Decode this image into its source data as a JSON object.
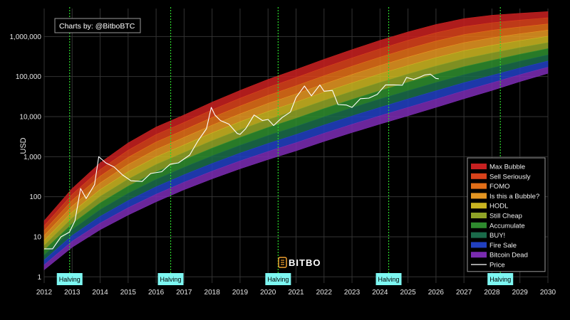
{
  "credit": "Charts by: @BitboBTC",
  "watermark": "BITBO",
  "chart_data": {
    "type": "area",
    "title": "",
    "xlabel": "",
    "ylabel": "USD",
    "yscale": "log",
    "xlim": [
      2012.0,
      2030.0
    ],
    "ylim": [
      0.7,
      5000000
    ],
    "x_ticks": [
      "2012",
      "2013",
      "2014",
      "2015",
      "2016",
      "2017",
      "2018",
      "2019",
      "2020",
      "2021",
      "2022",
      "2023",
      "2024",
      "2025",
      "2026",
      "2027",
      "2028",
      "2029",
      "2030"
    ],
    "y_ticks": [
      {
        "value": 1,
        "label": "1"
      },
      {
        "value": 10,
        "label": "10"
      },
      {
        "value": 100,
        "label": "100"
      },
      {
        "value": 1000,
        "label": "1,000"
      },
      {
        "value": 10000,
        "label": "10,000"
      },
      {
        "value": 100000,
        "label": "100,000"
      },
      {
        "value": 1000000,
        "label": "1,000,000"
      }
    ],
    "grid": true,
    "legend_position": "bottom-right",
    "bands": {
      "x": [
        2012.0,
        2013.0,
        2014.0,
        2015.0,
        2016.0,
        2017.0,
        2018.0,
        2019.0,
        2020.0,
        2021.0,
        2022.0,
        2023.0,
        2024.0,
        2025.0,
        2026.0,
        2027.0,
        2028.0,
        2029.0,
        2030.0
      ],
      "lower_edge": [
        1.5,
        5.5,
        15,
        35,
        75,
        150,
        280,
        500,
        850,
        1400,
        2400,
        4000,
        6500,
        10500,
        17000,
        28000,
        45000,
        75000,
        120000
      ],
      "upper_edge": [
        25,
        160,
        700,
        2200,
        5500,
        11000,
        23000,
        45000,
        85000,
        150000,
        270000,
        470000,
        800000,
        1300000,
        2000000,
        2800000,
        3400000,
        3800000,
        4200000
      ],
      "series": [
        {
          "name": "Max Bubble",
          "color": "#c62020"
        },
        {
          "name": "Sell Seriously",
          "color": "#d8421b"
        },
        {
          "name": "FOMO",
          "color": "#e06e18"
        },
        {
          "name": "Is this a Bubble?",
          "color": "#e39522"
        },
        {
          "name": "HODL",
          "color": "#c9b421"
        },
        {
          "name": "Still Cheap",
          "color": "#8fa327"
        },
        {
          "name": "Accumulate",
          "color": "#2e8b2e"
        },
        {
          "name": "BUY!",
          "color": "#1a6b4a"
        },
        {
          "name": "Fire Sale",
          "color": "#2140c0"
        },
        {
          "name": "Bitcoin Dead",
          "color": "#7a2bb0"
        }
      ]
    },
    "price": {
      "name": "Price",
      "color": "#ffffff",
      "x": [
        2012.0,
        2012.3,
        2012.6,
        2012.9,
        2013.1,
        2013.3,
        2013.5,
        2013.8,
        2013.95,
        2014.2,
        2014.5,
        2014.8,
        2015.1,
        2015.5,
        2015.8,
        2016.2,
        2016.5,
        2016.8,
        2017.2,
        2017.5,
        2017.8,
        2017.97,
        2018.1,
        2018.3,
        2018.6,
        2018.9,
        2019.0,
        2019.2,
        2019.5,
        2019.8,
        2020.0,
        2020.2,
        2020.5,
        2020.8,
        2021.0,
        2021.3,
        2021.55,
        2021.85,
        2022.0,
        2022.3,
        2022.5,
        2022.8,
        2023.0,
        2023.3,
        2023.6,
        2023.9,
        2024.2,
        2024.5,
        2024.8,
        2024.95,
        2025.2,
        2025.4,
        2025.6,
        2025.8,
        2026.0,
        2026.1
      ],
      "y": [
        5,
        5,
        10,
        13,
        25,
        160,
        90,
        200,
        1000,
        700,
        550,
        350,
        250,
        240,
        380,
        420,
        650,
        700,
        1100,
        2500,
        5000,
        17000,
        11000,
        8000,
        6500,
        3800,
        3600,
        5000,
        11000,
        8000,
        8500,
        6000,
        9500,
        13000,
        30000,
        58000,
        33000,
        62000,
        43000,
        45000,
        20000,
        19500,
        17000,
        28000,
        29000,
        36000,
        62000,
        62000,
        61000,
        95000,
        85000,
        95000,
        110000,
        115000,
        90000,
        88000
      ]
    },
    "halvings": [
      {
        "x": 2012.91,
        "label": "Halving"
      },
      {
        "x": 2016.52,
        "label": "Halving"
      },
      {
        "x": 2020.36,
        "label": "Halving"
      },
      {
        "x": 2024.31,
        "label": "Halving"
      },
      {
        "x": 2028.3,
        "label": "Halving"
      }
    ]
  }
}
